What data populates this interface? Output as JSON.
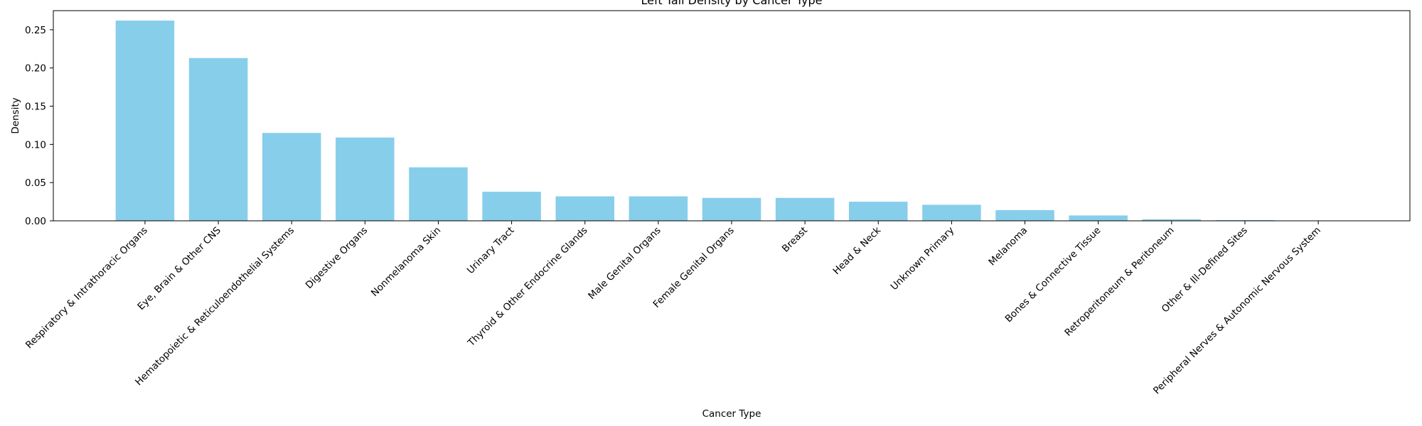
{
  "chart_data": {
    "type": "bar",
    "title": "Left Tail Density by Cancer Type",
    "xlabel": "Cancer Type",
    "ylabel": "Density",
    "ylim": [
      0,
      0.275
    ],
    "yticks": [
      0.0,
      0.05,
      0.1,
      0.15,
      0.2,
      0.25
    ],
    "ytick_labels": [
      "0.00",
      "0.05",
      "0.10",
      "0.15",
      "0.20",
      "0.25"
    ],
    "grid": false,
    "bar_color": "#87CEEB",
    "categories": [
      "Respiratory & Intrathoracic Organs",
      "Eye, Brain & Other CNS",
      "Hematopoietic & Reticuloendothelial Systems",
      "Digestive Organs",
      "Nonmelanoma Skin",
      "Urinary Tract",
      "Thyroid & Other Endocrine Glands",
      "Male Genital Organs",
      "Female Genital Organs",
      "Breast",
      "Head & Neck",
      "Unknown Primary",
      "Melanoma",
      "Bones & Connective Tissue",
      "Retroperitoneum & Peritoneum",
      "Other & Ill-Defined Sites",
      "Peripheral Nerves & Autonomic Nervous System"
    ],
    "values": [
      0.262,
      0.213,
      0.115,
      0.109,
      0.07,
      0.038,
      0.032,
      0.032,
      0.03,
      0.03,
      0.025,
      0.021,
      0.014,
      0.007,
      0.002,
      0.001,
      0.0
    ]
  }
}
